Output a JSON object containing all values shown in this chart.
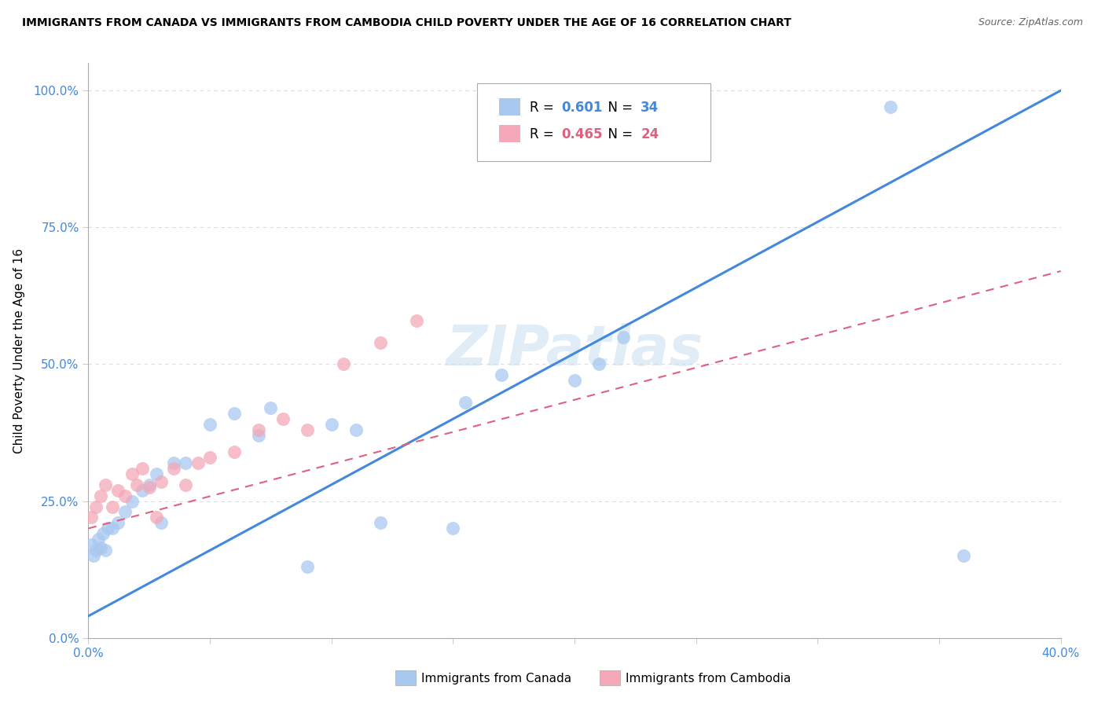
{
  "title": "IMMIGRANTS FROM CANADA VS IMMIGRANTS FROM CAMBODIA CHILD POVERTY UNDER THE AGE OF 16 CORRELATION CHART",
  "source": "Source: ZipAtlas.com",
  "ylabel": "Child Poverty Under the Age of 16",
  "xlim": [
    0.0,
    0.4
  ],
  "ylim": [
    0.0,
    1.05
  ],
  "yticks": [
    0.0,
    0.25,
    0.5,
    0.75,
    1.0
  ],
  "ytick_labels": [
    "0.0%",
    "25.0%",
    "50.0%",
    "75.0%",
    "100.0%"
  ],
  "xticks": [
    0.0,
    0.05,
    0.1,
    0.15,
    0.2,
    0.25,
    0.3,
    0.35,
    0.4
  ],
  "xtick_labels": [
    "0.0%",
    "",
    "",
    "",
    "",
    "",
    "",
    "",
    "40.0%"
  ],
  "canada_R": 0.601,
  "canada_N": 34,
  "cambodia_R": 0.465,
  "cambodia_N": 24,
  "canada_color": "#a8c8f0",
  "cambodia_color": "#f4a8b8",
  "canada_line_color": "#4488dd",
  "cambodia_line_color": "#e06080",
  "tick_color": "#4488dd",
  "watermark": "ZIPatlas",
  "canada_x": [
    0.001,
    0.002,
    0.003,
    0.004,
    0.005,
    0.006,
    0.007,
    0.008,
    0.01,
    0.012,
    0.015,
    0.018,
    0.022,
    0.025,
    0.028,
    0.03,
    0.035,
    0.04,
    0.05,
    0.06,
    0.07,
    0.075,
    0.09,
    0.1,
    0.11,
    0.12,
    0.15,
    0.155,
    0.17,
    0.2,
    0.21,
    0.22,
    0.33,
    0.36
  ],
  "canada_y": [
    0.17,
    0.15,
    0.16,
    0.18,
    0.165,
    0.19,
    0.16,
    0.2,
    0.2,
    0.21,
    0.23,
    0.25,
    0.27,
    0.28,
    0.3,
    0.21,
    0.32,
    0.32,
    0.39,
    0.41,
    0.37,
    0.42,
    0.13,
    0.39,
    0.38,
    0.21,
    0.2,
    0.43,
    0.48,
    0.47,
    0.5,
    0.55,
    0.97,
    0.15
  ],
  "cambodia_x": [
    0.001,
    0.003,
    0.005,
    0.007,
    0.01,
    0.012,
    0.015,
    0.018,
    0.02,
    0.022,
    0.025,
    0.028,
    0.03,
    0.035,
    0.04,
    0.045,
    0.05,
    0.06,
    0.07,
    0.08,
    0.09,
    0.105,
    0.12,
    0.135
  ],
  "cambodia_y": [
    0.22,
    0.24,
    0.26,
    0.28,
    0.24,
    0.27,
    0.26,
    0.3,
    0.28,
    0.31,
    0.275,
    0.22,
    0.285,
    0.31,
    0.28,
    0.32,
    0.33,
    0.34,
    0.38,
    0.4,
    0.38,
    0.5,
    0.54,
    0.58
  ],
  "canada_line_x0": 0.0,
  "canada_line_x1": 0.4,
  "canada_line_y0": 0.04,
  "canada_line_y1": 1.0,
  "cambodia_line_x0": 0.0,
  "cambodia_line_x1": 0.4,
  "cambodia_line_y0": 0.2,
  "cambodia_line_y1": 0.67,
  "background_color": "#ffffff",
  "grid_color": "#dddddd"
}
